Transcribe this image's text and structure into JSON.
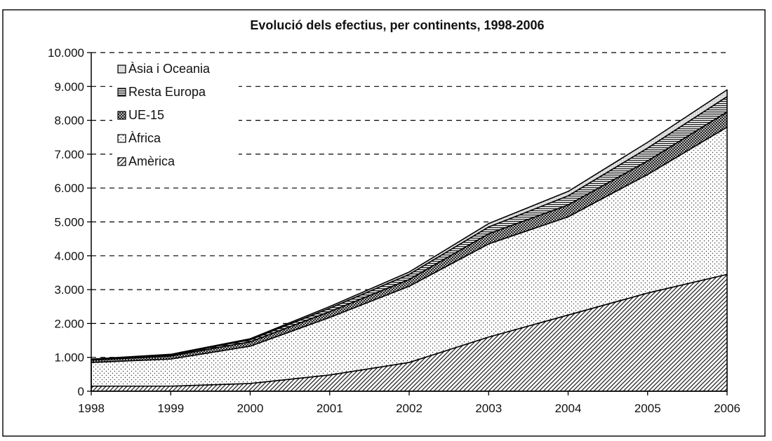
{
  "chart_data": {
    "type": "area",
    "stacked": true,
    "title": "Evolució dels efectius, per continents, 1998-2006",
    "xlabel": "",
    "ylabel": "",
    "x": [
      "1998",
      "1999",
      "2000",
      "2001",
      "2002",
      "2003",
      "2004",
      "2005",
      "2006"
    ],
    "ylim": [
      0,
      10000
    ],
    "y_ticks": [
      "0",
      "1.000",
      "2.000",
      "3.000",
      "4.000",
      "5.000",
      "6.000",
      "7.000",
      "8.000",
      "9.000",
      "10.000"
    ],
    "grid": "horizontal dashed",
    "legend_position": "top-left",
    "series": [
      {
        "name": "Amèrica",
        "pattern": "diagonal-hatch",
        "values": [
          150,
          150,
          230,
          480,
          850,
          1600,
          2250,
          2900,
          3450
        ]
      },
      {
        "name": "Àfrica",
        "pattern": "dots",
        "values": [
          700,
          800,
          1100,
          1700,
          2250,
          2750,
          2900,
          3500,
          4350
        ]
      },
      {
        "name": "UE-15",
        "pattern": "checker",
        "values": [
          70,
          90,
          130,
          170,
          200,
          300,
          350,
          400,
          450
        ]
      },
      {
        "name": "Resta Europa",
        "pattern": "horizontal-lines",
        "values": [
          20,
          30,
          60,
          100,
          150,
          200,
          270,
          380,
          450
        ]
      },
      {
        "name": "Àsia i Oceania",
        "pattern": "fine-dots",
        "values": [
          10,
          20,
          30,
          50,
          70,
          100,
          130,
          170,
          200
        ]
      }
    ]
  }
}
